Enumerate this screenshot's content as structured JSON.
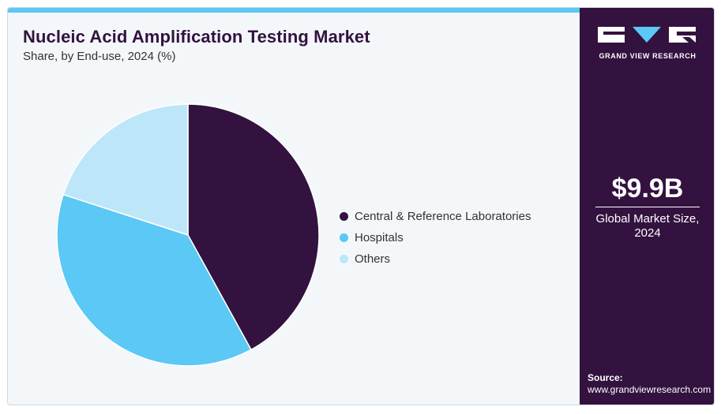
{
  "header": {
    "title": "Nucleic Acid Amplification Testing Market",
    "subtitle": "Share, by End-use, 2024 (%)"
  },
  "chart_data": {
    "type": "pie",
    "title": "Nucleic Acid Amplification Testing Market",
    "subtitle": "Share, by End-use, 2024 (%)",
    "categories": [
      "Central & Reference Laboratories",
      "Hospitals",
      "Others"
    ],
    "values": [
      42,
      38,
      20
    ],
    "colors": [
      "#33123f",
      "#5bc8f5",
      "#bde7f8"
    ],
    "legend_position": "right",
    "start_angle_deg": 0,
    "direction": "clockwise"
  },
  "side_panel": {
    "logo_text": "GRAND VIEW RESEARCH",
    "market_value": "$9.9B",
    "market_label": "Global Market Size, 2024",
    "source_label": "Source:",
    "source_url": "www.grandviewresearch.com",
    "background": "#33123f"
  },
  "accent": "#5bc8f5"
}
